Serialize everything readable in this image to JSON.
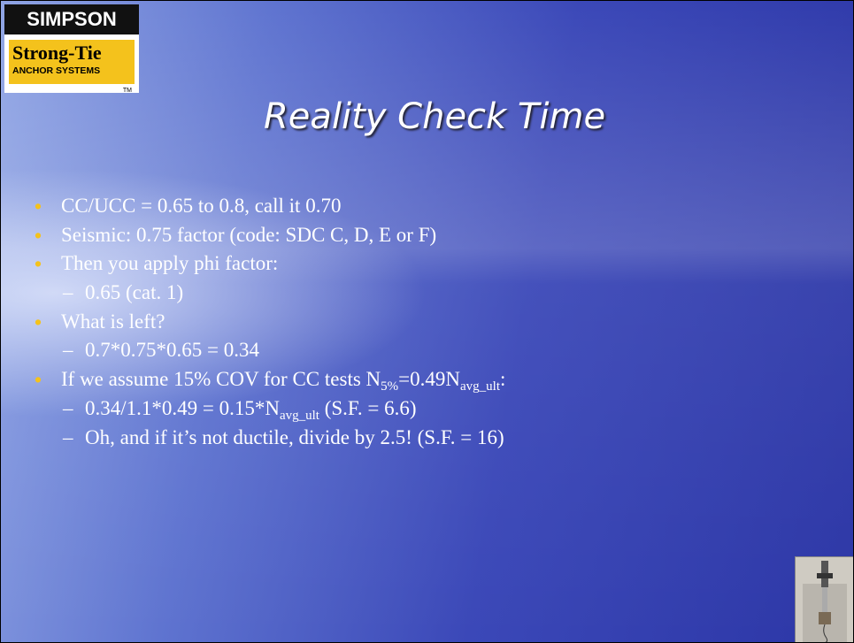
{
  "logo": {
    "brand": "SIMPSON",
    "name": "Strong-Tie",
    "tagline": "ANCHOR SYSTEMS",
    "mark": "TM"
  },
  "title": "Reality Check Time",
  "bullets": [
    {
      "runs": [
        {
          "text": "CC/UCC = 0.65 to 0.8, call it 0.70"
        }
      ],
      "subs": []
    },
    {
      "runs": [
        {
          "text": "Seismic: 0.75 factor (code: SDC C, D, E or F)"
        }
      ],
      "subs": []
    },
    {
      "runs": [
        {
          "text": "Then you apply phi factor:"
        }
      ],
      "subs": [
        {
          "runs": [
            {
              "text": "0.65 (cat. 1)"
            }
          ]
        }
      ]
    },
    {
      "runs": [
        {
          "text": "What is left?"
        }
      ],
      "subs": [
        {
          "runs": [
            {
              "text": "0.7*0.75*0.65 = 0.34"
            }
          ]
        }
      ]
    },
    {
      "runs": [
        {
          "text": "If we assume 15% COV for CC tests N"
        },
        {
          "sub": "5%"
        },
        {
          "text": "=0.49N"
        },
        {
          "sub": "avg_ult"
        },
        {
          "text": ":"
        }
      ],
      "subs": [
        {
          "runs": [
            {
              "text": "0.34/1.1*0.49 = 0.15*N"
            },
            {
              "sub": "avg_ult"
            },
            {
              "text": " (S.F. = 6.6)"
            }
          ]
        },
        {
          "runs": [
            {
              "text": "Oh, and if it’s not ductile, divide by 2.5! (S.F. = 16)"
            }
          ]
        }
      ]
    }
  ]
}
